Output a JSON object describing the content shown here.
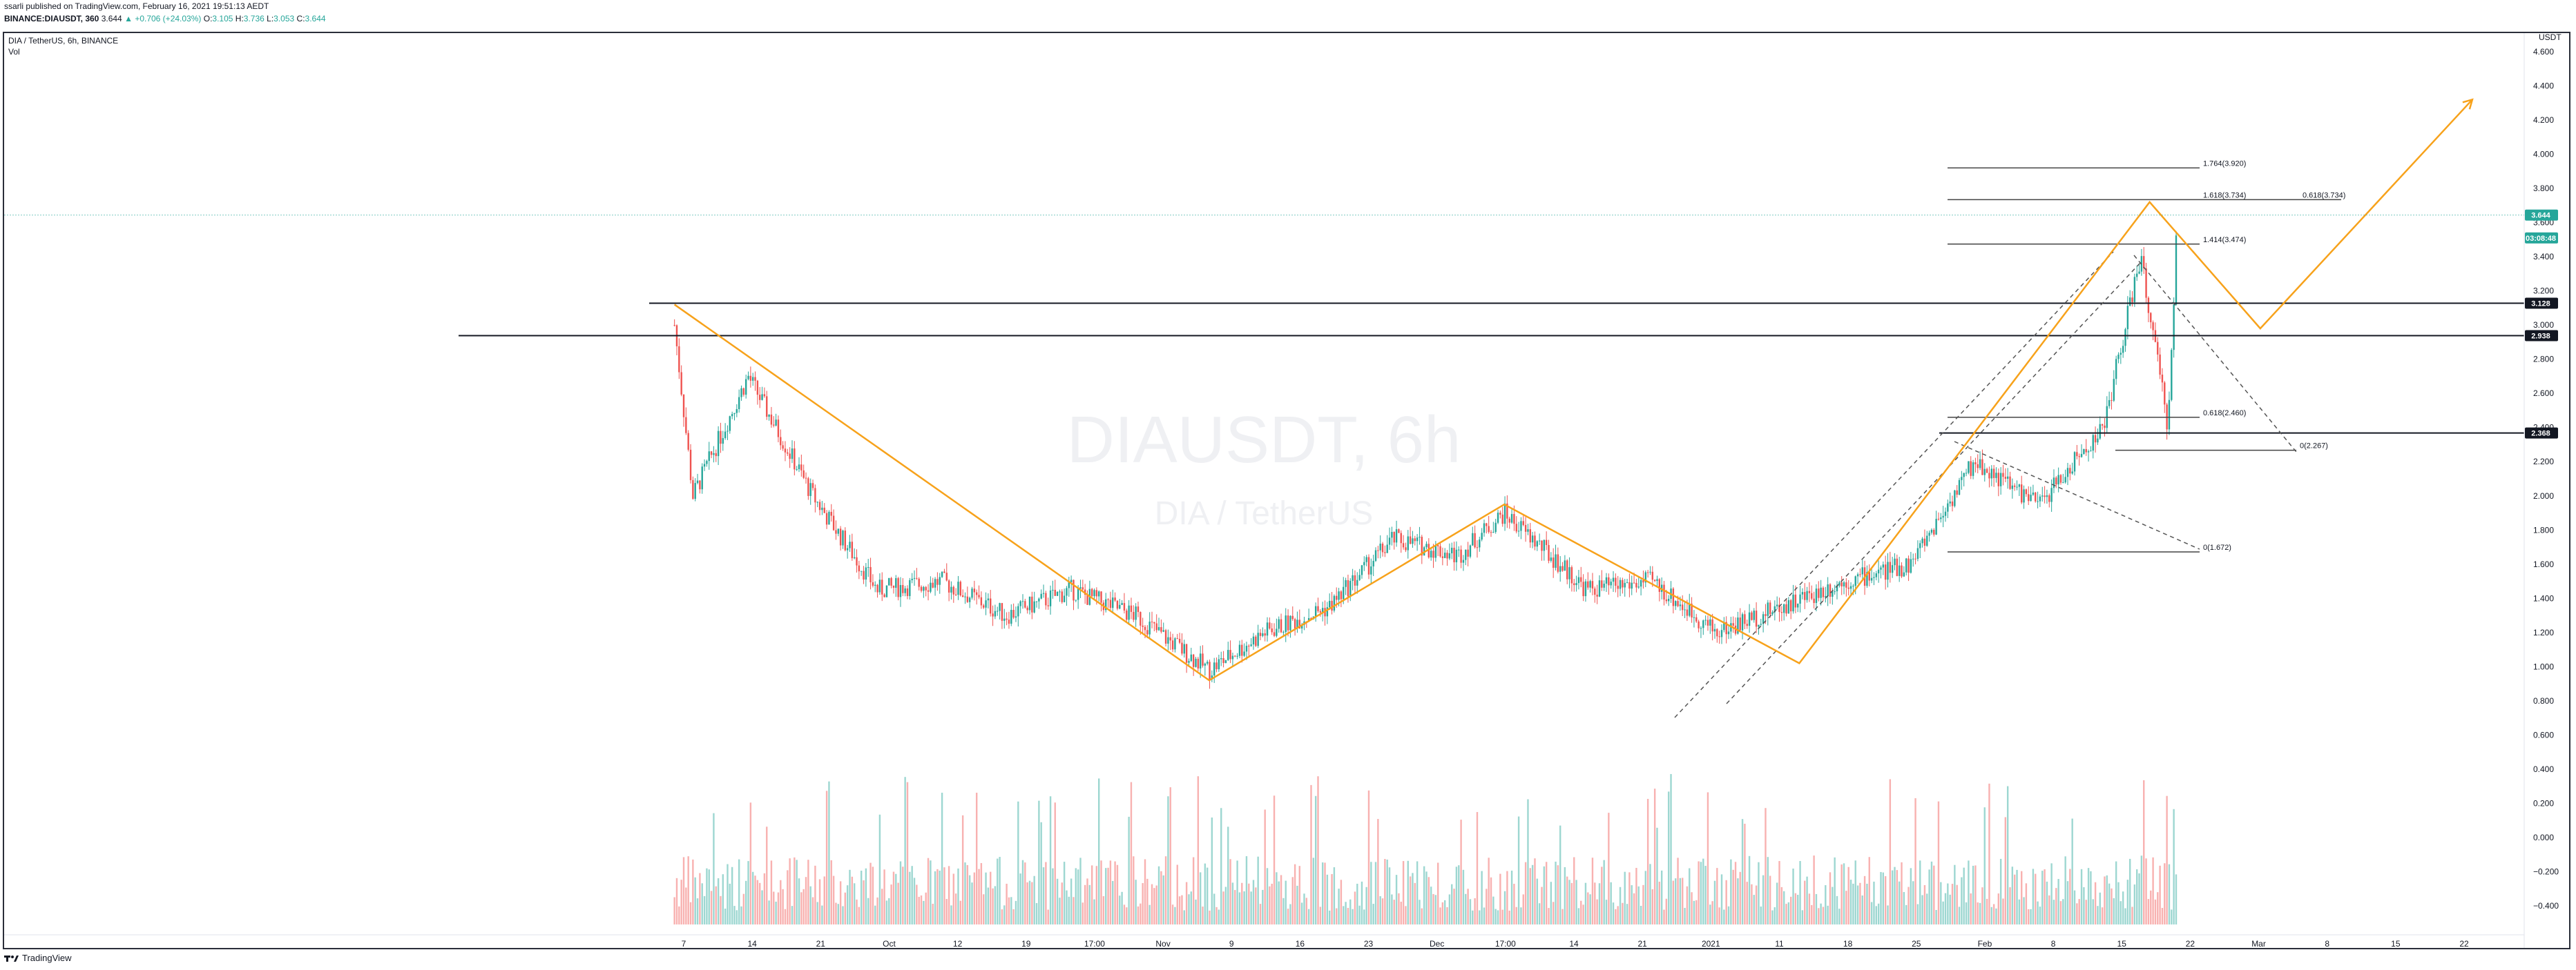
{
  "header": {
    "published_line": "ssarli published on TradingView.com, February 16, 2021 19:51:13 AEDT",
    "symbol": "BINANCE:DIAUSDT, 360",
    "price": "3.644",
    "change": "+0.706 (+24.03%)",
    "o_label": "O:",
    "o_val": "3.105",
    "h_label": "H:",
    "h_val": "3.736",
    "l_label": "L:",
    "l_val": "3.053",
    "c_label": "C:",
    "c_val": "3.644"
  },
  "legend": {
    "series": "DIA / TetherUS, 6h, BINANCE",
    "volume": "Vol"
  },
  "watermark": {
    "symbol": "DIAUSDT, 6h",
    "name": "DIA / TetherUS"
  },
  "footer": {
    "brand": "TradingView"
  },
  "colors": {
    "up": "#26a69a",
    "down": "#ef5350",
    "pattern": "#f7a21b",
    "level": "#131722",
    "fib": "#444444"
  },
  "chart_data": {
    "type": "candlestick",
    "price_axis": {
      "unit": "USDT",
      "ticks": [
        "4.600",
        "4.400",
        "4.200",
        "4.000",
        "3.800",
        "3.600",
        "3.400",
        "3.200",
        "3.000",
        "2.800",
        "2.600",
        "2.400",
        "2.200",
        "2.000",
        "1.800",
        "1.600",
        "1.400",
        "1.200",
        "1.000",
        "0.800",
        "0.600",
        "0.400",
        "0.200",
        "0.000",
        "−0.200",
        "−0.400"
      ]
    },
    "time_axis": [
      "7",
      "14",
      "21",
      "Oct",
      "12",
      "19",
      "17:00",
      "Nov",
      "9",
      "16",
      "23",
      "Dec",
      "17:00",
      "14",
      "21",
      "2021",
      "11",
      "18",
      "25",
      "Feb",
      "8",
      "15",
      "22",
      "Mar",
      "8",
      "15",
      "22"
    ],
    "price_labels": [
      {
        "text": "3.644",
        "kind": "last"
      },
      {
        "text": "03:08:48",
        "kind": "countdown"
      },
      {
        "text": "3.128",
        "kind": "level"
      },
      {
        "text": "2.938",
        "kind": "level"
      },
      {
        "text": "2.368",
        "kind": "level"
      }
    ],
    "fib_labels": [
      "1.764(3.920)",
      "1.618(3.734)",
      "0.618(3.734)",
      "1.414(3.474)",
      "0.618(2.460)",
      "0(2.267)",
      "0(1.672)"
    ],
    "horizontal_levels": [
      3.128,
      2.938,
      2.368
    ],
    "pattern_points": [
      {
        "date": "2020-09-06",
        "price": 3.12
      },
      {
        "date": "2020-11-03",
        "price": 0.92
      },
      {
        "date": "2020-12-05",
        "price": 1.95
      },
      {
        "date": "2021-01-06",
        "price": 1.02
      },
      {
        "date": "2021-02-13",
        "price": 3.72
      },
      {
        "date": "2021-02-25",
        "price": 2.98
      },
      {
        "date": "2021-03-20",
        "price": 4.32
      }
    ],
    "candles_6h_close_approx": [
      {
        "period": "2020-09-06",
        "close": 3.0
      },
      {
        "period": "2020-09-08",
        "close": 2.0
      },
      {
        "period": "2020-09-14",
        "close": 2.7
      },
      {
        "period": "2020-09-21",
        "close": 2.0
      },
      {
        "period": "2020-09-28",
        "close": 1.45
      },
      {
        "period": "2020-10-05",
        "close": 1.5
      },
      {
        "period": "2020-10-12",
        "close": 1.3
      },
      {
        "period": "2020-10-19",
        "close": 1.45
      },
      {
        "period": "2020-10-26",
        "close": 1.3
      },
      {
        "period": "2020-11-03",
        "close": 0.98
      },
      {
        "period": "2020-11-09",
        "close": 1.2
      },
      {
        "period": "2020-11-16",
        "close": 1.35
      },
      {
        "period": "2020-11-23",
        "close": 1.75
      },
      {
        "period": "2020-11-30",
        "close": 1.65
      },
      {
        "period": "2020-12-05",
        "close": 1.9
      },
      {
        "period": "2020-12-14",
        "close": 1.45
      },
      {
        "period": "2020-12-21",
        "close": 1.5
      },
      {
        "period": "2020-12-28",
        "close": 1.2
      },
      {
        "period": "2021-01-04",
        "close": 1.35
      },
      {
        "period": "2021-01-11",
        "close": 1.5
      },
      {
        "period": "2021-01-18",
        "close": 1.6
      },
      {
        "period": "2021-01-25",
        "close": 2.2
      },
      {
        "period": "2021-02-01",
        "close": 1.95
      },
      {
        "period": "2021-02-08",
        "close": 2.4
      },
      {
        "period": "2021-02-12",
        "close": 3.4
      },
      {
        "period": "2021-02-15",
        "close": 2.4
      },
      {
        "period": "2021-02-16",
        "close": 3.644
      }
    ]
  }
}
